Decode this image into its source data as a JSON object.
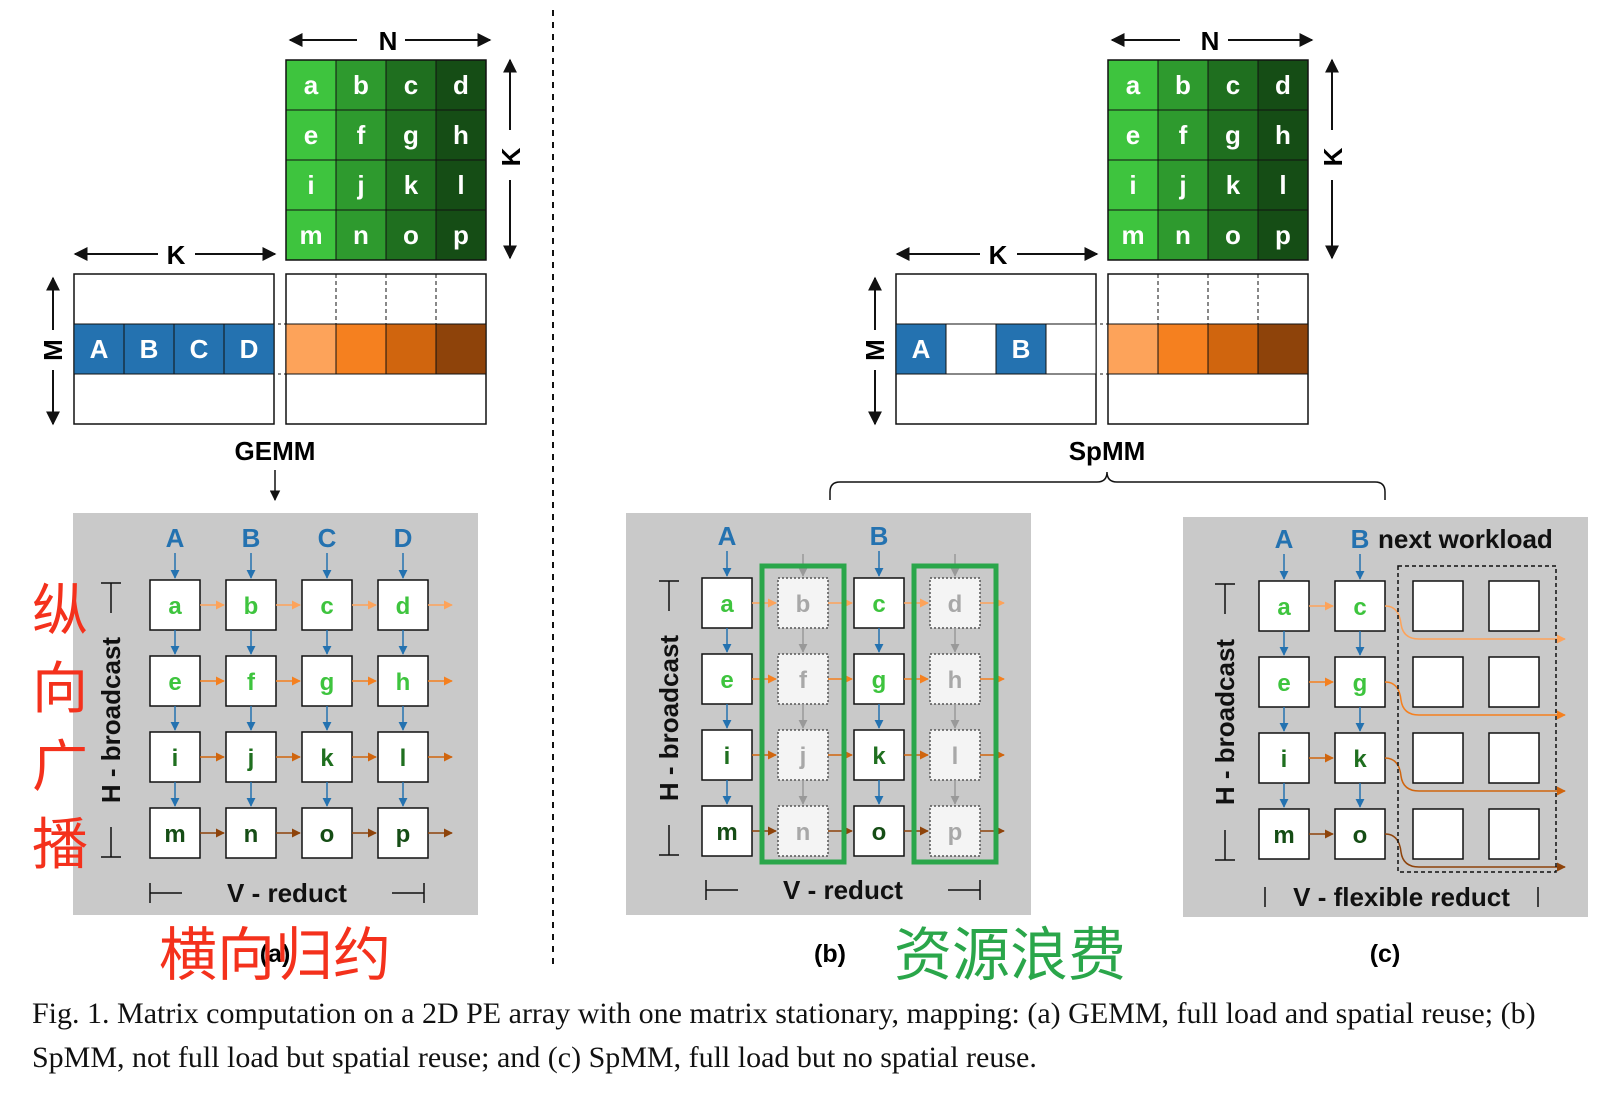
{
  "matrix_b_labels": [
    [
      "a",
      "e",
      "i",
      "m"
    ],
    [
      "b",
      "f",
      "j",
      "n"
    ],
    [
      "c",
      "g",
      "k",
      "o"
    ],
    [
      "d",
      "h",
      "l",
      "p"
    ]
  ],
  "pe_labels": [
    [
      "a",
      "b",
      "c",
      "d"
    ],
    [
      "e",
      "f",
      "g",
      "h"
    ],
    [
      "i",
      "j",
      "k",
      "l"
    ],
    [
      "m",
      "n",
      "o",
      "p"
    ]
  ],
  "dims": {
    "n": "N",
    "k": "K",
    "m": "M"
  },
  "gemm": {
    "title": "GEMM",
    "a_row": [
      "A",
      "B",
      "C",
      "D"
    ],
    "inputs": [
      "A",
      "B",
      "C",
      "D"
    ],
    "h_label": "H - broadcast",
    "v_label": "V - reduct",
    "sub_label": "(a)"
  },
  "spmm": {
    "title": "SpMM",
    "a_row": [
      "A",
      "",
      "B",
      ""
    ],
    "b": {
      "inputs": [
        "A",
        "B"
      ],
      "h_label": "H - broadcast",
      "v_label": "V - reduct",
      "sub_label": "(b)"
    },
    "c": {
      "inputs": [
        "A",
        "B"
      ],
      "next_label": "next workload",
      "cols": [
        [
          "a",
          "e",
          "i",
          "m"
        ],
        [
          "c",
          "g",
          "k",
          "o"
        ]
      ],
      "h_label": "H - broadcast",
      "v_label": "V - flexible reduct",
      "sub_label": "(c)"
    }
  },
  "annotations": {
    "vertical": [
      "纵",
      "向",
      "广",
      "播"
    ],
    "horizontal": "横向归约",
    "waste": "资源浪费"
  },
  "caption": "Fig. 1.  Matrix computation on a 2D PE array with one matrix stationary, mapping: (a) GEMM, full load and spatial reuse; (b) SpMM, not full load but spatial reuse; and (c) SpMM, full load but no spatial reuse.",
  "colors": {
    "green_light": "#3ec43e",
    "green_mid": "#2e9a2e",
    "green_dark": "#1f6f1f",
    "green_darkest": "#154d15",
    "blue": "#2472b0",
    "orange1": "#fda35a",
    "orange2": "#f5801f",
    "orange3": "#d0650e",
    "orange4": "#8e430a",
    "panel_gray": "#c9c9c9",
    "ghost": "#a8a8a8",
    "red_note": "#f4311c",
    "green_note": "#2aa64a"
  }
}
